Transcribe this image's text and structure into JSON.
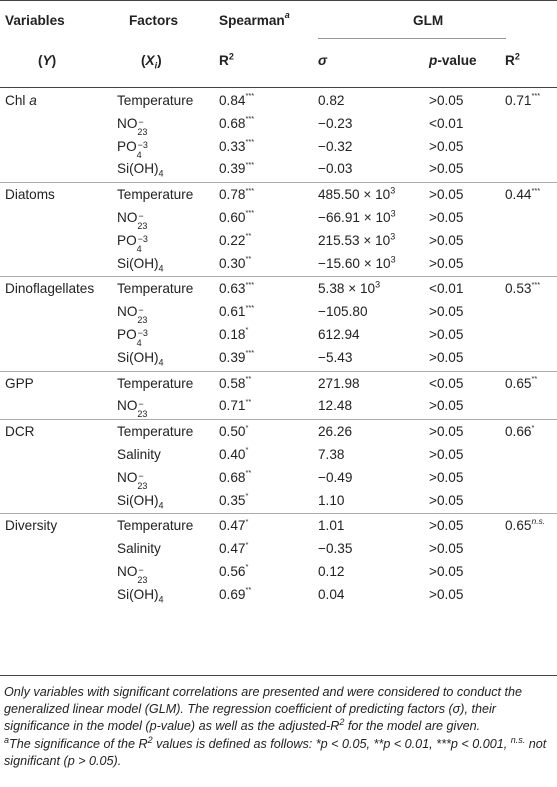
{
  "headers": {
    "variables": "Variables",
    "y": "(Y)",
    "factors": "Factors",
    "xi": "(Xi)",
    "spearman": "Spearman",
    "spearman_note": "a",
    "spearman_r2": "R2",
    "glm": "GLM",
    "sigma": "σ",
    "pvalue": "p-value",
    "glm_r2": "R2"
  },
  "groups": [
    {
      "variable": "Chl a",
      "glm_r2": {
        "v": "0.71",
        "s": "***"
      },
      "rows": [
        {
          "factor": "Temperature",
          "r2": {
            "v": "0.84",
            "s": "***"
          },
          "sigma": "0.82",
          "p": ">0.05"
        },
        {
          "factor": "NO23-",
          "r2": {
            "v": "0.68",
            "s": "***"
          },
          "sigma": "−0.23",
          "p": "<0.01"
        },
        {
          "factor": "PO4-3",
          "r2": {
            "v": "0.33",
            "s": "***"
          },
          "sigma": "−0.32",
          "p": ">0.05"
        },
        {
          "factor": "Si(OH)4",
          "r2": {
            "v": "0.39",
            "s": "***"
          },
          "sigma": "−0.03",
          "p": ">0.05"
        }
      ]
    },
    {
      "variable": "Diatoms",
      "glm_r2": {
        "v": "0.44",
        "s": "***"
      },
      "rows": [
        {
          "factor": "Temperature",
          "r2": {
            "v": "0.78",
            "s": "***"
          },
          "sigma": "485.50 × 103",
          "p": ">0.05"
        },
        {
          "factor": "NO23-",
          "r2": {
            "v": "0.60",
            "s": "***"
          },
          "sigma": "−66.91 × 103",
          "p": ">0.05"
        },
        {
          "factor": "PO4-3",
          "r2": {
            "v": "0.22",
            "s": "**"
          },
          "sigma": "215.53 × 103",
          "p": ">0.05"
        },
        {
          "factor": "Si(OH)4",
          "r2": {
            "v": "0.30",
            "s": "**"
          },
          "sigma": "−15.60 × 103",
          "p": ">0.05"
        }
      ]
    },
    {
      "variable": "Dinoflagellates",
      "glm_r2": {
        "v": "0.53",
        "s": "***"
      },
      "rows": [
        {
          "factor": "Temperature",
          "r2": {
            "v": "0.63",
            "s": "***"
          },
          "sigma": "5.38 × 103",
          "p": "<0.01"
        },
        {
          "factor": "NO23-",
          "r2": {
            "v": "0.61",
            "s": "***"
          },
          "sigma": "−105.80",
          "p": ">0.05"
        },
        {
          "factor": "PO4-3",
          "r2": {
            "v": "0.18",
            "s": "*"
          },
          "sigma": "612.94",
          "p": ">0.05"
        },
        {
          "factor": "Si(OH)4",
          "r2": {
            "v": "0.39",
            "s": "***"
          },
          "sigma": "−5.43",
          "p": ">0.05"
        }
      ]
    },
    {
      "variable": "GPP",
      "glm_r2": {
        "v": "0.65",
        "s": "**"
      },
      "rows": [
        {
          "factor": "Temperature",
          "r2": {
            "v": "0.58",
            "s": "**"
          },
          "sigma": "271.98",
          "p": "<0.05"
        },
        {
          "factor": "NO23-",
          "r2": {
            "v": "0.71",
            "s": "**"
          },
          "sigma": "12.48",
          "p": ">0.05"
        }
      ]
    },
    {
      "variable": "DCR",
      "glm_r2": {
        "v": "0.66",
        "s": "*"
      },
      "rows": [
        {
          "factor": "Temperature",
          "r2": {
            "v": "0.50",
            "s": "*"
          },
          "sigma": "26.26",
          "p": ">0.05"
        },
        {
          "factor": "Salinity",
          "r2": {
            "v": "0.40",
            "s": "*"
          },
          "sigma": "7.38",
          "p": ">0.05"
        },
        {
          "factor": "NO23-",
          "r2": {
            "v": "0.68",
            "s": "**"
          },
          "sigma": "−0.49",
          "p": ">0.05"
        },
        {
          "factor": "Si(OH)4",
          "r2": {
            "v": "0.35",
            "s": "*"
          },
          "sigma": "1.10",
          "p": ">0.05"
        }
      ]
    },
    {
      "variable": "Diversity",
      "glm_r2": {
        "v": "0.65",
        "s": "n.s."
      },
      "rows": [
        {
          "factor": "Temperature",
          "r2": {
            "v": "0.47",
            "s": "*"
          },
          "sigma": "1.01",
          "p": ">0.05"
        },
        {
          "factor": "Salinity",
          "r2": {
            "v": "0.47",
            "s": "*"
          },
          "sigma": "−0.35",
          "p": ">0.05"
        },
        {
          "factor": "NO23-",
          "r2": {
            "v": "0.56",
            "s": "*"
          },
          "sigma": "0.12",
          "p": ">0.05"
        },
        {
          "factor": "Si(OH)4",
          "r2": {
            "v": "0.69",
            "s": "**"
          },
          "sigma": "0.04",
          "p": ">0.05"
        }
      ]
    }
  ],
  "footnote": {
    "line1": "Only variables with significant correlations are presented and were considered to conduct the generalized linear model (GLM). The regression coefficient of predicting factors (σ), their significance in the model (p-value) as well as the adjusted-R2 for the model are given.",
    "line2": "aThe significance of the R2 values is defined as follows: *p < 0.05, **p < 0.01, ***p < 0.001, n.s. not significant (p > 0.05)."
  }
}
